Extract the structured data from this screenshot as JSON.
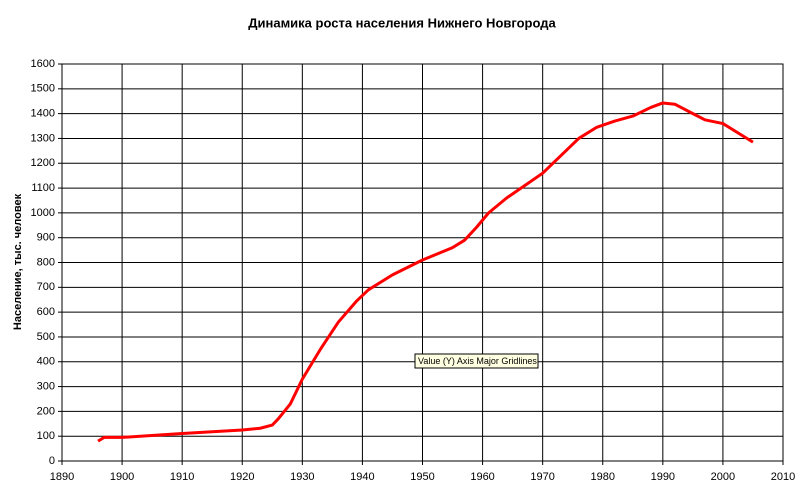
{
  "chart_data": {
    "type": "line",
    "title": "Динамика роста населения Нижнего Новгорода",
    "y_label": "Население, тыс. человек",
    "tooltip": "Value (Y) Axis Major Gridlines",
    "x": [
      1896,
      1897,
      1900,
      1910,
      1920,
      1923,
      1925,
      1926,
      1928,
      1930,
      1933,
      1936,
      1939,
      1941,
      1945,
      1950,
      1955,
      1957,
      1959,
      1961,
      1964,
      1967,
      1970,
      1973,
      1976,
      1979,
      1982,
      1985,
      1988,
      1990,
      1992,
      1995,
      1997,
      2000,
      2002,
      2005
    ],
    "series": [
      {
        "name": "Население",
        "color": "#ff0000",
        "values": [
          80,
          95,
          95,
          111,
          125,
          132,
          145,
          170,
          230,
          330,
          450,
          560,
          644,
          690,
          750,
          810,
          860,
          890,
          942,
          1000,
          1060,
          1110,
          1160,
          1230,
          1300,
          1345,
          1370,
          1390,
          1425,
          1443,
          1438,
          1400,
          1375,
          1360,
          1330,
          1285
        ]
      }
    ],
    "xlim": [
      1890,
      2010
    ],
    "xticks": [
      1890,
      1900,
      1910,
      1920,
      1930,
      1940,
      1950,
      1960,
      1970,
      1980,
      1990,
      2000,
      2010
    ],
    "ylim": [
      0,
      1600
    ],
    "yticks": [
      0,
      100,
      200,
      300,
      400,
      500,
      600,
      700,
      800,
      900,
      1000,
      1100,
      1200,
      1300,
      1400,
      1500,
      1600
    ],
    "grid": true
  }
}
